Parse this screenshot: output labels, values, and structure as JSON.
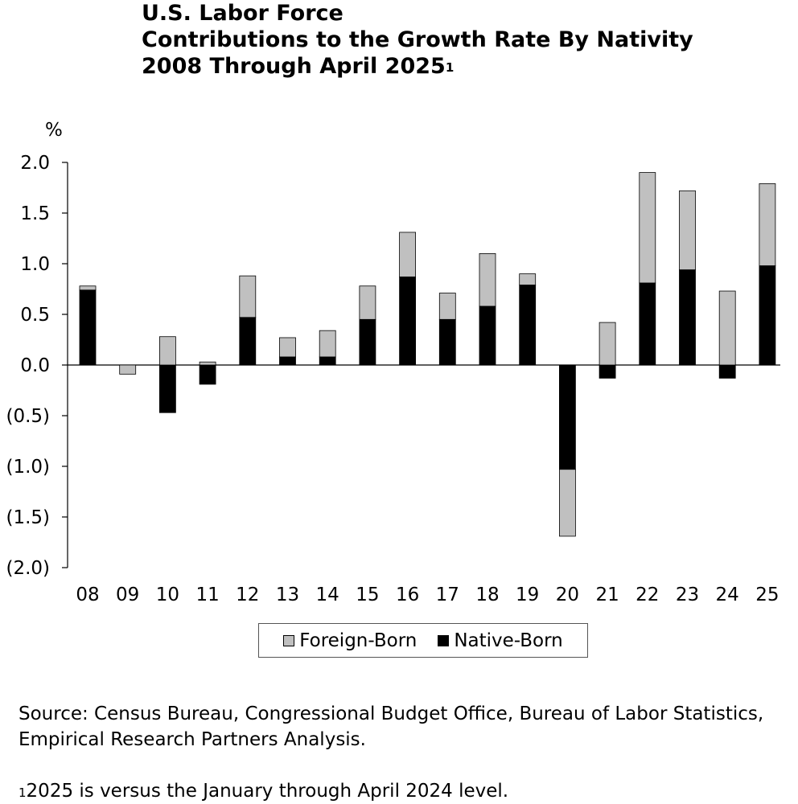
{
  "title": {
    "line1": "U.S. Labor Force",
    "line2": "Contributions to the Growth Rate By Nativity",
    "line3": "2008 Through April 2025",
    "line3_sup": "1"
  },
  "chart_data": {
    "type": "bar",
    "stacked": true,
    "unit_label": "%",
    "categories": [
      "08",
      "09",
      "10",
      "11",
      "12",
      "13",
      "14",
      "15",
      "16",
      "17",
      "18",
      "19",
      "20",
      "21",
      "22",
      "23",
      "24",
      "25"
    ],
    "series": [
      {
        "name": "Native-Born",
        "color": "#000000",
        "values": [
          0.74,
          0.0,
          -0.47,
          -0.19,
          0.47,
          0.08,
          0.08,
          0.45,
          0.87,
          0.45,
          0.58,
          0.79,
          -1.03,
          -0.13,
          0.81,
          0.94,
          -0.13,
          0.98
        ]
      },
      {
        "name": "Foreign-Born",
        "color": "#c0c0c0",
        "values": [
          0.04,
          -0.09,
          0.28,
          0.03,
          0.41,
          0.19,
          0.26,
          0.33,
          0.44,
          0.26,
          0.52,
          0.11,
          -0.66,
          0.42,
          1.09,
          0.78,
          0.73,
          0.81
        ]
      }
    ],
    "y_ticks": [
      "2.0",
      "1.5",
      "1.0",
      "0.5",
      "0.0",
      "(0.5)",
      "(1.0)",
      "(1.5)",
      "(2.0)"
    ],
    "ylim": [
      -2.0,
      2.0
    ],
    "grid": false,
    "legend_position": "bottom-center",
    "legend_order": [
      "Foreign-Born",
      "Native-Born"
    ]
  },
  "source_text": "Source: Census Bureau, Congressional Budget Office, Bureau of Labor Statistics, Empirical Research Partners Analysis.",
  "footnote": {
    "marker": "1",
    "text": "2025 is versus the January through April 2024 level."
  }
}
